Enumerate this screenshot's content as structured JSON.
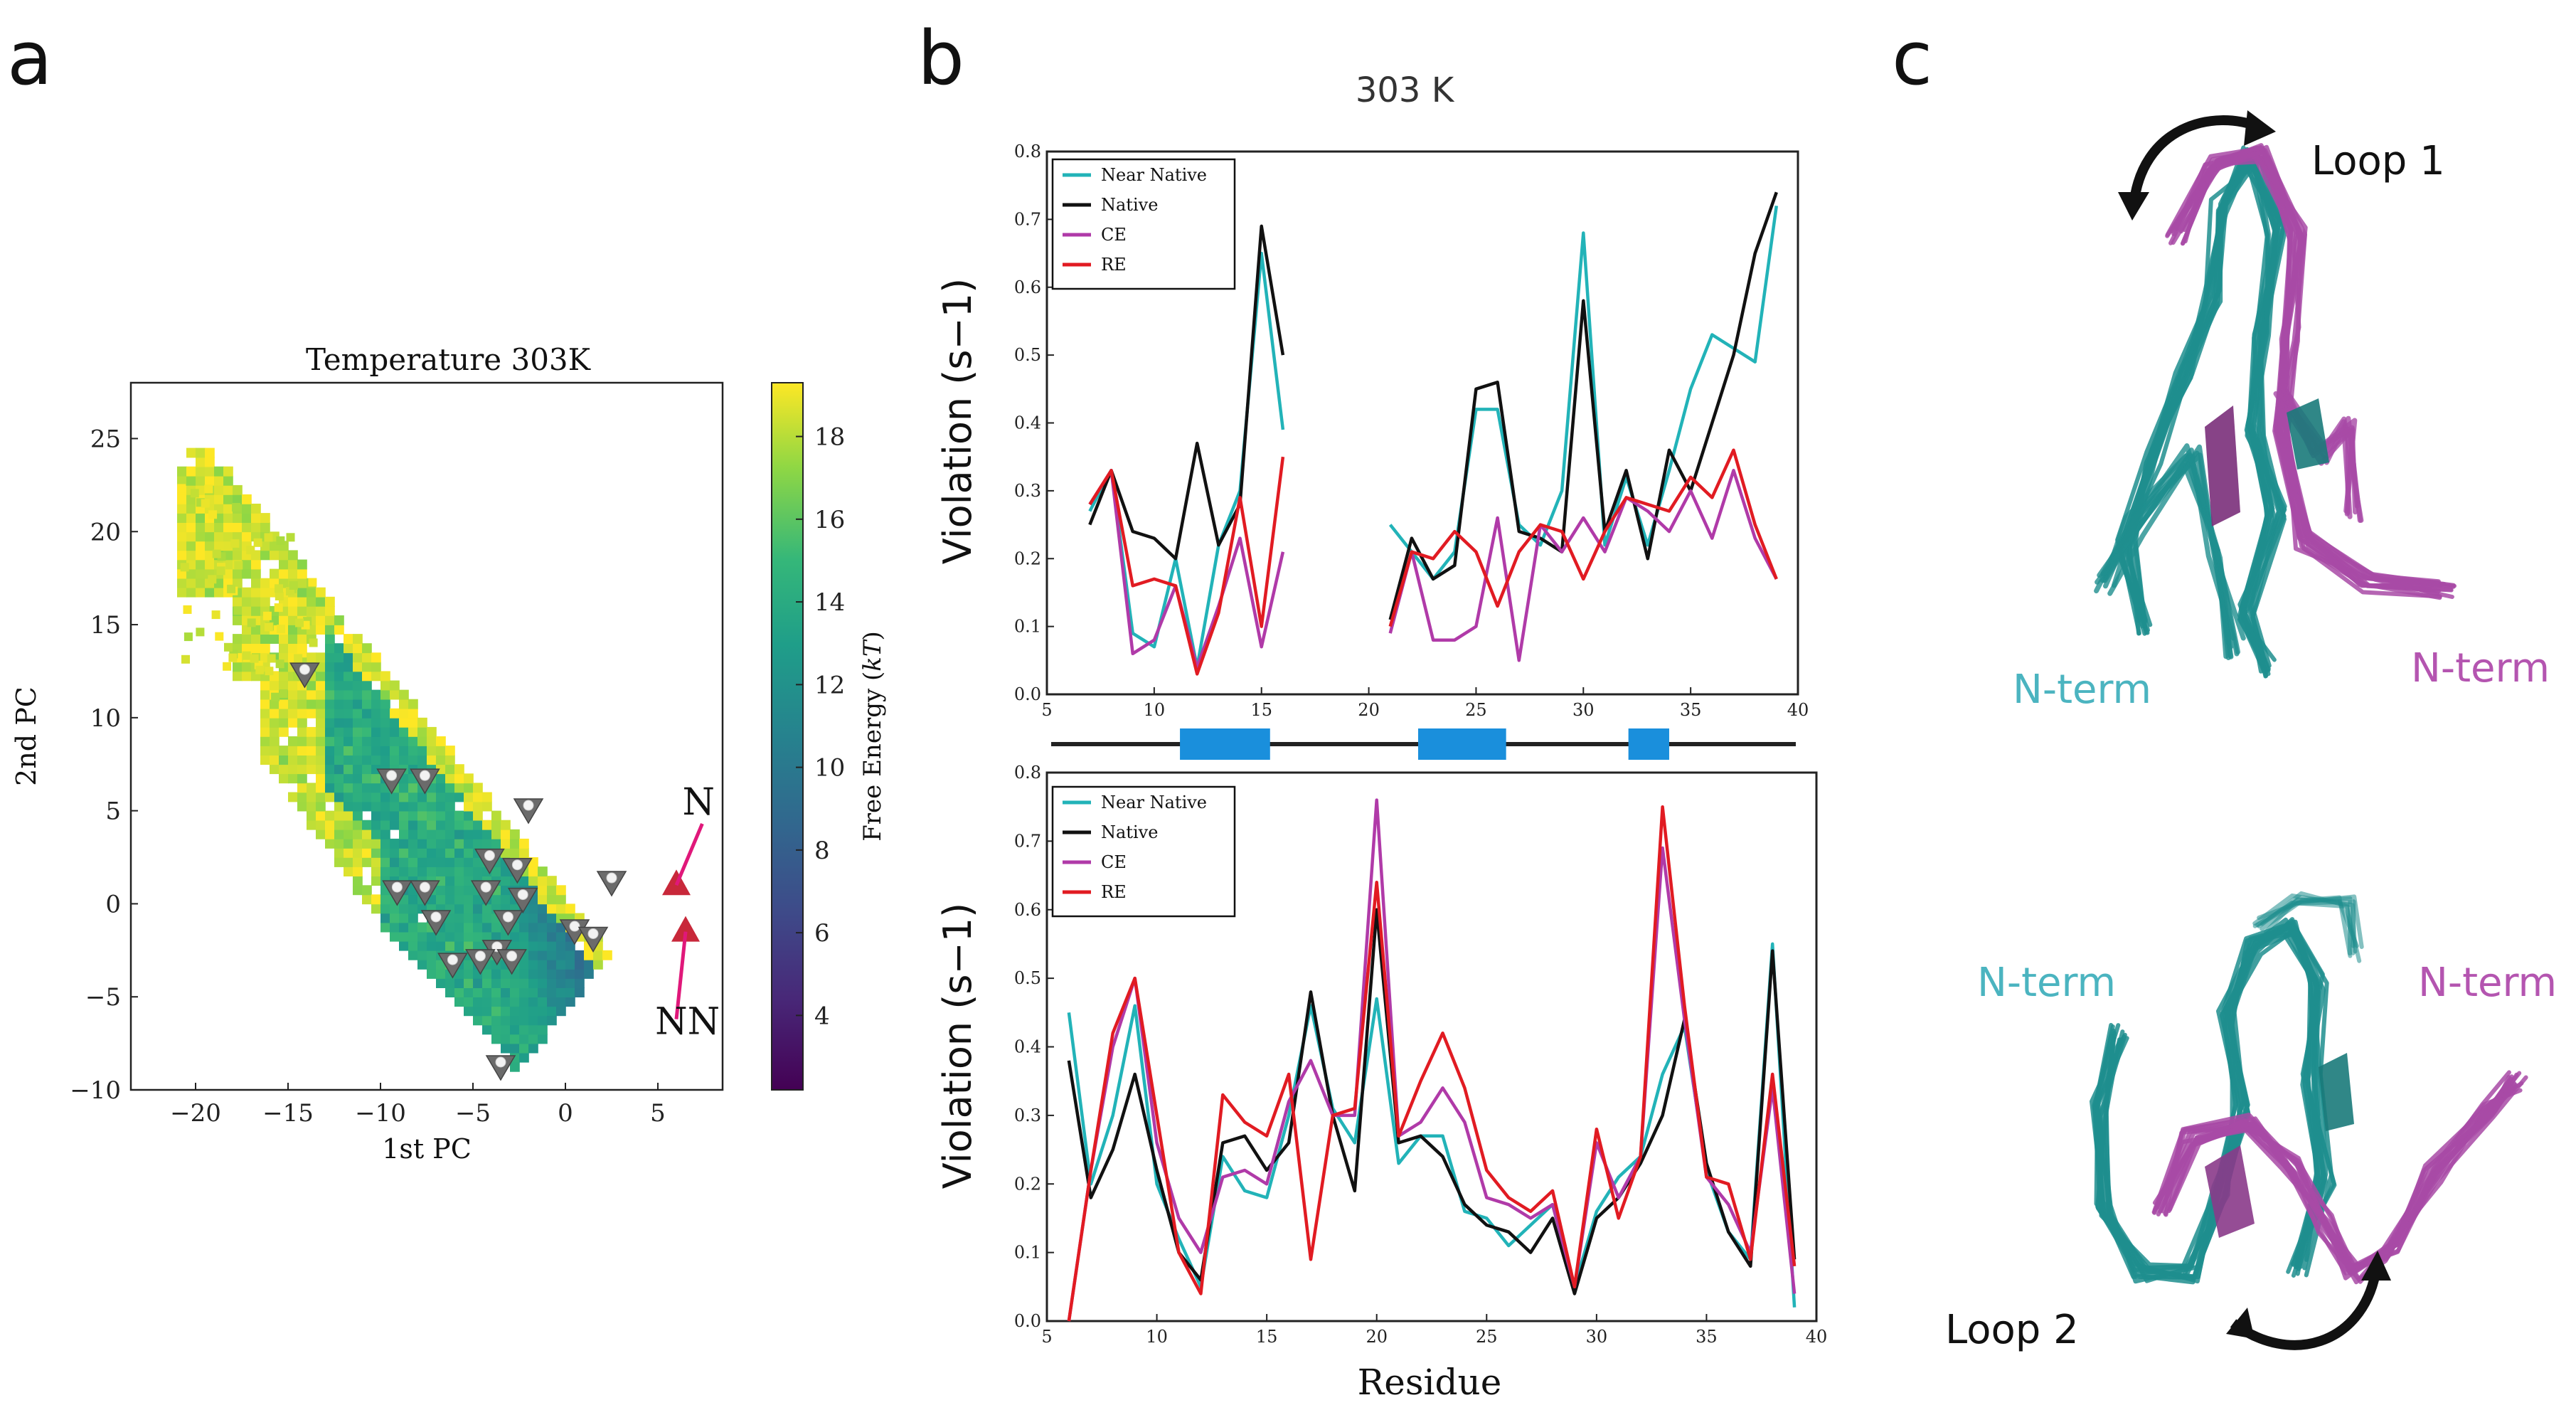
{
  "panels": {
    "a": "a",
    "b": "b",
    "c": "c"
  },
  "colors": {
    "near_native": "#22b3b8",
    "native": "#111111",
    "ce": "#b03aa8",
    "re": "#e11b22",
    "helix": "#1a8fdc",
    "marker": "#e0187a"
  },
  "chart_data": [
    {
      "type": "heatmap",
      "title": "Temperature 303K",
      "xlabel": "1st PC",
      "ylabel": "2nd PC",
      "xlim": [
        -23.5,
        8.5
      ],
      "ylim": [
        -10,
        28
      ],
      "xticks": [
        -20,
        -15,
        -10,
        -5,
        0,
        5
      ],
      "yticks": [
        -10,
        -5,
        0,
        5,
        10,
        15,
        20,
        25
      ],
      "colorbar": {
        "label": "Free Energy (kT)",
        "label_main": "Free Energy (",
        "label_unit": "kT",
        "label_end": ")",
        "min": 2.2,
        "max": 19.3,
        "ticks": [
          4,
          6,
          8,
          10,
          12,
          14,
          16,
          18
        ]
      },
      "annotations": [
        {
          "text": "N",
          "x": 7.2,
          "y": 4.8
        },
        {
          "text": "NN",
          "x": 6.6,
          "y": -7.0
        }
      ],
      "markers_state": [
        {
          "x": 6.0,
          "y": 1.0,
          "label": "N"
        },
        {
          "x": 6.5,
          "y": -1.5,
          "label": "NN"
        }
      ],
      "triangle_markers": [
        {
          "x": -14.1,
          "y": 12.4
        },
        {
          "x": -9.4,
          "y": 6.7
        },
        {
          "x": -7.6,
          "y": 6.7
        },
        {
          "x": -2.0,
          "y": 5.1
        },
        {
          "x": -4.1,
          "y": 2.4
        },
        {
          "x": -2.6,
          "y": 1.9
        },
        {
          "x": -9.1,
          "y": 0.7
        },
        {
          "x": -7.6,
          "y": 0.7
        },
        {
          "x": -4.3,
          "y": 0.7
        },
        {
          "x": -2.3,
          "y": 0.3
        },
        {
          "x": 2.5,
          "y": 1.2
        },
        {
          "x": -7.0,
          "y": -0.9
        },
        {
          "x": -3.1,
          "y": -0.9
        },
        {
          "x": 0.5,
          "y": -1.4
        },
        {
          "x": 1.5,
          "y": -1.8
        },
        {
          "x": -3.7,
          "y": -2.5
        },
        {
          "x": -6.1,
          "y": -3.2
        },
        {
          "x": -4.6,
          "y": -3.0
        },
        {
          "x": -2.9,
          "y": -3.0
        },
        {
          "x": -3.5,
          "y": -8.7
        }
      ]
    },
    {
      "type": "line",
      "title": "303 K",
      "ylabel": "Violation (s−1)",
      "ylim": [
        0.0,
        0.8
      ],
      "xlim": [
        5,
        40
      ],
      "xticks": [
        5,
        10,
        15,
        20,
        25,
        30,
        35,
        40
      ],
      "yticks": [
        0.0,
        0.1,
        0.2,
        0.3,
        0.4,
        0.5,
        0.6,
        0.7,
        0.8
      ],
      "series": [
        {
          "name": "Near Native",
          "segments": [
            {
              "x": [
                7,
                8,
                9,
                10,
                11,
                12,
                13,
                14,
                15,
                16
              ],
              "y": [
                0.27,
                0.33,
                0.09,
                0.07,
                0.2,
                0.04,
                0.22,
                0.3,
                0.65,
                0.39
              ]
            },
            {
              "x": [
                21,
                22,
                23,
                24,
                25,
                26,
                27,
                28,
                29,
                30,
                31,
                32,
                33,
                34,
                35,
                36,
                37,
                38,
                39
              ],
              "y": [
                0.25,
                0.21,
                0.17,
                0.21,
                0.42,
                0.42,
                0.25,
                0.22,
                0.3,
                0.68,
                0.22,
                0.32,
                0.22,
                0.33,
                0.45,
                0.53,
                0.51,
                0.49,
                0.72
              ]
            }
          ]
        },
        {
          "name": "Native",
          "segments": [
            {
              "x": [
                7,
                8,
                9,
                10,
                11,
                12,
                13,
                14,
                15,
                16
              ],
              "y": [
                0.25,
                0.33,
                0.24,
                0.23,
                0.2,
                0.37,
                0.22,
                0.28,
                0.69,
                0.5
              ]
            },
            {
              "x": [
                21,
                22,
                23,
                24,
                25,
                26,
                27,
                28,
                29,
                30,
                31,
                32,
                33,
                34,
                35,
                36,
                37,
                38,
                39
              ],
              "y": [
                0.11,
                0.23,
                0.17,
                0.19,
                0.45,
                0.46,
                0.24,
                0.23,
                0.21,
                0.58,
                0.24,
                0.33,
                0.2,
                0.36,
                0.3,
                0.4,
                0.5,
                0.65,
                0.74
              ]
            }
          ]
        },
        {
          "name": "CE",
          "segments": [
            {
              "x": [
                7,
                8,
                9,
                10,
                11,
                12,
                13,
                14,
                15,
                16
              ],
              "y": [
                0.28,
                0.33,
                0.06,
                0.08,
                0.16,
                0.04,
                0.13,
                0.23,
                0.07,
                0.21
              ]
            },
            {
              "x": [
                21,
                22,
                23,
                24,
                25,
                26,
                27,
                28,
                29,
                30,
                31,
                32,
                33,
                34,
                35,
                36,
                37,
                38,
                39
              ],
              "y": [
                0.09,
                0.21,
                0.08,
                0.08,
                0.1,
                0.26,
                0.05,
                0.25,
                0.21,
                0.26,
                0.21,
                0.29,
                0.27,
                0.24,
                0.3,
                0.23,
                0.33,
                0.23,
                0.17
              ]
            }
          ]
        },
        {
          "name": "RE",
          "segments": [
            {
              "x": [
                7,
                8,
                9,
                10,
                11,
                12,
                13,
                14,
                15,
                16
              ],
              "y": [
                0.28,
                0.33,
                0.16,
                0.17,
                0.16,
                0.03,
                0.12,
                0.29,
                0.1,
                0.35
              ]
            },
            {
              "x": [
                21,
                22,
                23,
                24,
                25,
                26,
                27,
                28,
                29,
                30,
                31,
                32,
                33,
                34,
                35,
                36,
                37,
                38,
                39
              ],
              "y": [
                0.1,
                0.21,
                0.2,
                0.24,
                0.21,
                0.13,
                0.21,
                0.25,
                0.24,
                0.17,
                0.24,
                0.29,
                0.28,
                0.27,
                0.32,
                0.29,
                0.36,
                0.25,
                0.17
              ]
            }
          ]
        }
      ],
      "legend_position": "upper-left"
    },
    {
      "type": "line",
      "xlabel": "Residue",
      "ylabel": "Violation (s−1)",
      "ylim": [
        0.0,
        0.8
      ],
      "xlim": [
        5,
        40
      ],
      "xticks": [
        5,
        10,
        15,
        20,
        25,
        30,
        35,
        40
      ],
      "yticks": [
        0.0,
        0.1,
        0.2,
        0.3,
        0.4,
        0.5,
        0.6,
        0.7,
        0.8
      ],
      "series": [
        {
          "name": "Near Native",
          "x": [
            6,
            7,
            8,
            9,
            10,
            11,
            12,
            13,
            14,
            15,
            16,
            17,
            18,
            19,
            20,
            21,
            22,
            23,
            24,
            25,
            26,
            27,
            28,
            29,
            30,
            31,
            32,
            33,
            34,
            35,
            36,
            37,
            38,
            39
          ],
          "y": [
            0.45,
            0.2,
            0.3,
            0.46,
            0.2,
            0.12,
            0.05,
            0.24,
            0.19,
            0.18,
            0.3,
            0.46,
            0.31,
            0.26,
            0.47,
            0.23,
            0.27,
            0.27,
            0.16,
            0.15,
            0.11,
            0.14,
            0.17,
            0.05,
            0.16,
            0.21,
            0.24,
            0.36,
            0.43,
            0.22,
            0.13,
            0.09,
            0.55,
            0.02
          ]
        },
        {
          "name": "Native",
          "x": [
            6,
            7,
            8,
            9,
            10,
            11,
            12,
            13,
            14,
            15,
            16,
            17,
            18,
            19,
            20,
            21,
            22,
            23,
            24,
            25,
            26,
            27,
            28,
            29,
            30,
            31,
            32,
            33,
            34,
            35,
            36,
            37,
            38,
            39
          ],
          "y": [
            0.38,
            0.18,
            0.25,
            0.36,
            0.22,
            0.1,
            0.06,
            0.26,
            0.27,
            0.22,
            0.26,
            0.48,
            0.3,
            0.19,
            0.6,
            0.26,
            0.27,
            0.24,
            0.17,
            0.14,
            0.13,
            0.1,
            0.15,
            0.04,
            0.15,
            0.18,
            0.23,
            0.3,
            0.44,
            0.23,
            0.13,
            0.08,
            0.54,
            0.09
          ]
        },
        {
          "name": "CE",
          "x": [
            6,
            7,
            8,
            9,
            10,
            11,
            12,
            13,
            14,
            15,
            16,
            17,
            18,
            19,
            20,
            21,
            22,
            23,
            24,
            25,
            26,
            27,
            28,
            29,
            30,
            31,
            32,
            33,
            34,
            35,
            36,
            37,
            38,
            39
          ],
          "y": [
            0.0,
            0.22,
            0.4,
            0.5,
            0.26,
            0.15,
            0.1,
            0.21,
            0.22,
            0.2,
            0.32,
            0.38,
            0.3,
            0.3,
            0.76,
            0.27,
            0.29,
            0.34,
            0.29,
            0.18,
            0.17,
            0.15,
            0.17,
            0.05,
            0.26,
            0.18,
            0.24,
            0.69,
            0.44,
            0.21,
            0.17,
            0.1,
            0.34,
            0.04
          ]
        },
        {
          "name": "RE",
          "x": [
            6,
            7,
            8,
            9,
            10,
            11,
            12,
            13,
            14,
            15,
            16,
            17,
            18,
            19,
            20,
            21,
            22,
            23,
            24,
            25,
            26,
            27,
            28,
            29,
            30,
            31,
            32,
            33,
            34,
            35,
            36,
            37,
            38,
            39
          ],
          "y": [
            0.0,
            0.22,
            0.42,
            0.5,
            0.3,
            0.1,
            0.04,
            0.33,
            0.29,
            0.27,
            0.36,
            0.09,
            0.3,
            0.31,
            0.64,
            0.27,
            0.35,
            0.42,
            0.34,
            0.22,
            0.18,
            0.16,
            0.19,
            0.05,
            0.28,
            0.15,
            0.24,
            0.75,
            0.46,
            0.21,
            0.2,
            0.09,
            0.36,
            0.08
          ]
        }
      ],
      "legend_position": "upper-left"
    }
  ],
  "secondary_structure": {
    "x_start": 5,
    "x_end": 40,
    "blocks": [
      {
        "start": 11.2,
        "end": 15.4
      },
      {
        "start": 22.3,
        "end": 26.4
      },
      {
        "start": 32.1,
        "end": 34.0
      }
    ]
  },
  "structures": {
    "labels": {
      "loop1": "Loop 1",
      "loop2": "Loop 2",
      "nterm": "N-term"
    },
    "colors": {
      "teal": "#1f8e8e",
      "magenta": "#a84aa6"
    }
  }
}
